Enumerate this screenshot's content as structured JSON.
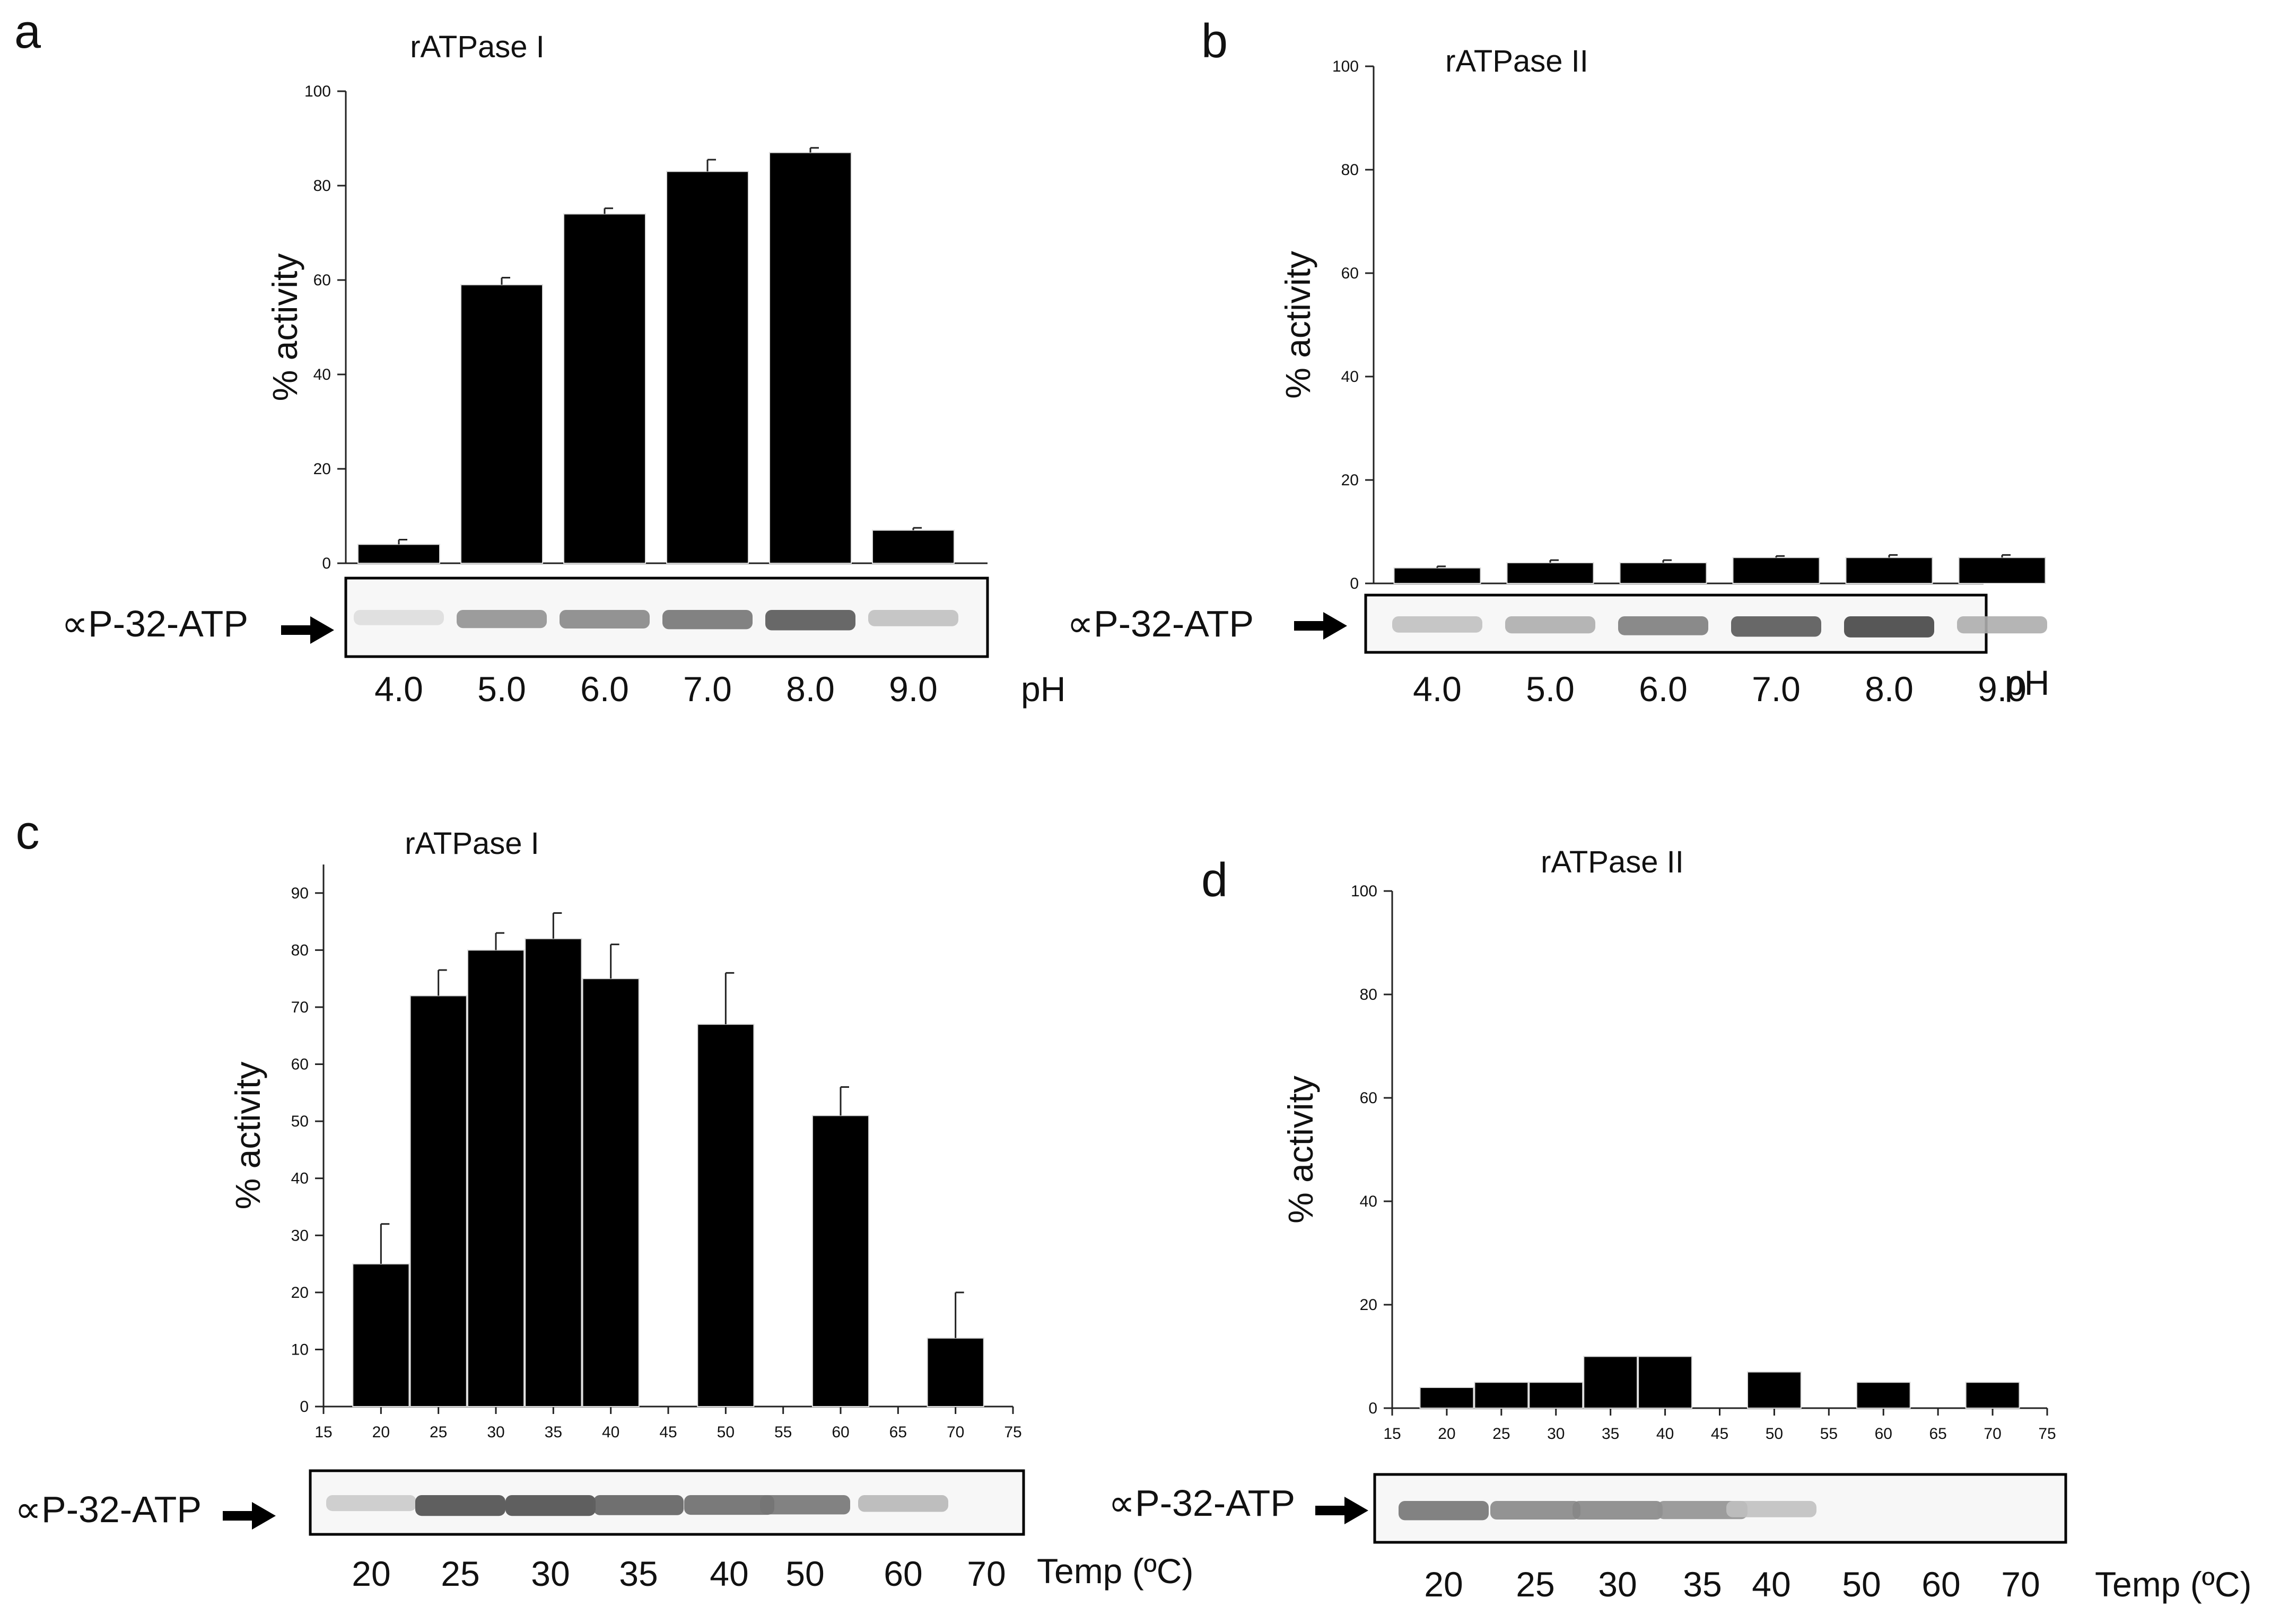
{
  "chart_data": [
    {
      "panel": "a",
      "type": "bar",
      "title": "rATPase I",
      "ylabel": "% activity",
      "xlabel": "pH",
      "ylim": [
        0,
        100
      ],
      "yticks": [
        0,
        20,
        40,
        60,
        80,
        100
      ],
      "categories": [
        "4.0",
        "5.0",
        "6.0",
        "7.0",
        "8.0",
        "9.0"
      ],
      "values": [
        4,
        59,
        74,
        83,
        87,
        7
      ],
      "errors": [
        1,
        1.5,
        1.2,
        2.5,
        1,
        0.5
      ],
      "gel_label": "∝P-32-ATP",
      "band_intensity": [
        0.05,
        0.45,
        0.5,
        0.6,
        0.75,
        0.2
      ]
    },
    {
      "panel": "b",
      "type": "bar",
      "title": "rATPase II",
      "ylabel": "% activity",
      "xlabel": "pH",
      "ylim": [
        0,
        100
      ],
      "yticks": [
        0,
        20,
        40,
        60,
        80,
        100
      ],
      "categories": [
        "4.0",
        "5.0",
        "6.0",
        "7.0",
        "8.0",
        "9.0"
      ],
      "values": [
        3,
        4,
        4,
        5,
        5,
        5
      ],
      "errors": [
        0.3,
        0.5,
        0.5,
        0.3,
        0.5,
        0.5
      ],
      "gel_label": "∝P-32-ATP",
      "band_intensity": [
        0.2,
        0.3,
        0.55,
        0.75,
        0.85,
        0.3
      ]
    },
    {
      "panel": "c",
      "type": "bar",
      "title": "rATPase I",
      "ylabel": "% activity",
      "xlabel": "Temp (ºC)",
      "xlim": [
        15,
        75
      ],
      "xticks": [
        15,
        20,
        25,
        30,
        35,
        40,
        45,
        50,
        55,
        60,
        65,
        70,
        75
      ],
      "ylim": [
        0,
        95
      ],
      "yticks": [
        0,
        10,
        20,
        30,
        40,
        50,
        60,
        70,
        80,
        90
      ],
      "x": [
        20,
        25,
        30,
        35,
        40,
        50,
        60,
        70
      ],
      "values": [
        25,
        72,
        80,
        82,
        75,
        67,
        51,
        12
      ],
      "errors": [
        7,
        4.5,
        3,
        4.5,
        6,
        9,
        5,
        8
      ],
      "gel_label": "∝P-32-ATP",
      "gel_categories": [
        "20",
        "25",
        "30",
        "35",
        "40",
        "50",
        "60",
        "70"
      ],
      "band_intensity": [
        0.15,
        0.8,
        0.8,
        0.7,
        0.65,
        0.6,
        0.25,
        0
      ]
    },
    {
      "panel": "d",
      "type": "bar",
      "title": "rATPase II",
      "ylabel": "% activity",
      "xlabel": "Temp (ºC)",
      "xlim": [
        15,
        75
      ],
      "xticks": [
        15,
        20,
        25,
        30,
        35,
        40,
        45,
        50,
        55,
        60,
        65,
        70,
        75
      ],
      "ylim": [
        0,
        100
      ],
      "yticks": [
        0,
        20,
        40,
        60,
        80,
        100
      ],
      "x": [
        20,
        25,
        30,
        35,
        40,
        50,
        60,
        70
      ],
      "values": [
        4,
        5,
        5,
        10,
        10,
        7,
        5,
        5
      ],
      "errors": [
        0,
        0,
        0,
        0,
        0,
        0,
        0,
        0
      ],
      "gel_label": "∝P-32-ATP",
      "gel_categories": [
        "20",
        "25",
        "30",
        "35",
        "40",
        "50",
        "60",
        "70"
      ],
      "band_intensity": [
        0.6,
        0.5,
        0.5,
        0.45,
        0.2,
        0,
        0,
        0
      ]
    }
  ]
}
